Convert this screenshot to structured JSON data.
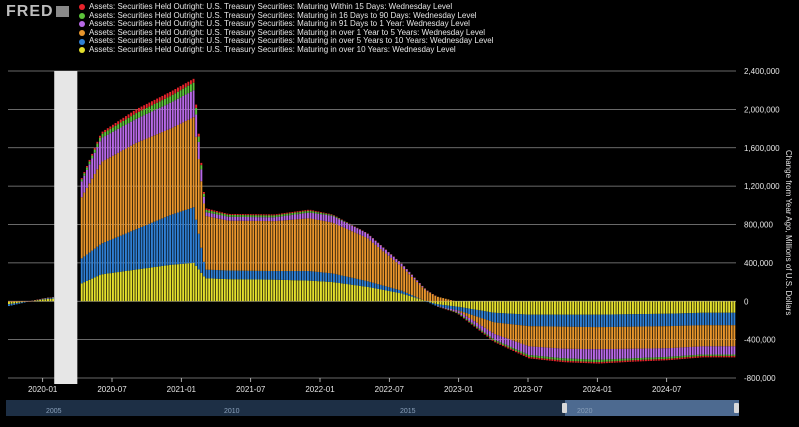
{
  "brand": {
    "name": "FRED",
    "logo_icon": "fred-chart-icon"
  },
  "chart_data": {
    "type": "bar",
    "stacked": true,
    "ylabel": "Change from Year Ago, Millions of U.S. Dollars",
    "ylim": [
      -800000,
      2400000
    ],
    "y_ticks": [
      2400000,
      2000000,
      1600000,
      1200000,
      800000,
      400000,
      0,
      -400000,
      -800000
    ],
    "y_tick_labels": [
      "2,400,000",
      "2,000,000",
      "1,600,000",
      "1,200,000",
      "800,000",
      "400,000",
      "0",
      "-400,000",
      "-800,000"
    ],
    "x_tick_labels": [
      "2020-01",
      "2020-07",
      "2021-01",
      "2021-07",
      "2022-01",
      "2022-07",
      "2023-01",
      "2023-07",
      "2024-01",
      "2024-07"
    ],
    "recession_shading": [
      "2020-02",
      "2020-04"
    ],
    "grid": true,
    "legend_position": "top-left",
    "categories": [
      "2019-10",
      "2020-01",
      "2020-03",
      "2020-04",
      "2020-06",
      "2020-09",
      "2020-12",
      "2021-02",
      "2021-03",
      "2021-05",
      "2021-09",
      "2021-12",
      "2022-02",
      "2022-05",
      "2022-08",
      "2022-11",
      "2023-01",
      "2023-04",
      "2023-07",
      "2023-10",
      "2024-01",
      "2024-04",
      "2024-07",
      "2024-10"
    ],
    "series": [
      {
        "name": "Assets: Securities Held Outright: U.S. Treasury Securities: Maturing Within 15 Days: Wednesday Level",
        "color": "#e8232b",
        "values": [
          0,
          0,
          0,
          10000,
          20000,
          40000,
          45000,
          40000,
          15000,
          10000,
          10000,
          10000,
          5000,
          0,
          0,
          0,
          -5000,
          -10000,
          -15000,
          -15000,
          -15000,
          -15000,
          -15000,
          -15000
        ]
      },
      {
        "name": "Assets: Securities Held Outright: U.S. Treasury Securities: Maturing in 16 Days to 90 Days: Wednesday Level",
        "color": "#5cc33a",
        "values": [
          0,
          0,
          0,
          20000,
          40000,
          60000,
          70000,
          80000,
          25000,
          20000,
          20000,
          20000,
          10000,
          0,
          0,
          0,
          -10000,
          -15000,
          -20000,
          -25000,
          -25000,
          -20000,
          -20000,
          -15000
        ]
      },
      {
        "name": "Assets: Securities Held Outright: U.S. Treasury Securities: Maturing in 91 Days to 1 Year: Wednesday Level",
        "color": "#b768e6",
        "values": [
          0,
          0,
          0,
          150000,
          250000,
          250000,
          270000,
          280000,
          40000,
          40000,
          40000,
          60000,
          70000,
          50000,
          30000,
          0,
          -20000,
          -60000,
          -90000,
          -100000,
          -110000,
          -100000,
          -90000,
          -85000
        ]
      },
      {
        "name": "Assets: Securities Held Outright: U.S. Treasury Securities: Maturing in over 1 Year to 5 Years: Wednesday Level",
        "color": "#e8952c",
        "values": [
          0,
          0,
          0,
          600000,
          850000,
          900000,
          900000,
          940000,
          560000,
          520000,
          520000,
          550000,
          530000,
          450000,
          250000,
          50000,
          -10000,
          -120000,
          -210000,
          -230000,
          -230000,
          -230000,
          -230000,
          -220000
        ]
      },
      {
        "name": "Assets: Securities Held Outright: U.S. Treasury Securities: Maturing in over 5 Years to 10 Years: Wednesday Level",
        "color": "#2f7fd4",
        "values": [
          -20000,
          10000,
          20000,
          250000,
          320000,
          420000,
          520000,
          580000,
          90000,
          90000,
          90000,
          100000,
          90000,
          60000,
          30000,
          -20000,
          -40000,
          -100000,
          -120000,
          -125000,
          -130000,
          -130000,
          -130000,
          -130000
        ]
      },
      {
        "name": "Assets: Securities Held Outright: U.S. Treasury Securities: Maturing in over 10 Years: Wednesday Level",
        "color": "#e3df2d",
        "values": [
          -30000,
          20000,
          40000,
          170000,
          280000,
          330000,
          380000,
          400000,
          240000,
          230000,
          225000,
          215000,
          200000,
          150000,
          80000,
          -30000,
          -60000,
          -120000,
          -140000,
          -140000,
          -140000,
          -135000,
          -130000,
          -120000
        ]
      }
    ]
  },
  "navigator": {
    "labels": [
      "2005",
      "2010",
      "2015",
      "2020"
    ],
    "handle_left_icon": "range-handle-icon",
    "handle_right_icon": "range-handle-icon"
  }
}
